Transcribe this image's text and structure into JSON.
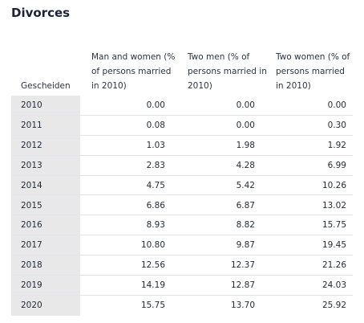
{
  "title": "Divorces",
  "columns": [
    "Gescheiden",
    "Man and women (% of persons married in 2010)",
    "Two men (% of persons married in 2010)",
    "Two women (% of persons married in 2010)"
  ],
  "rows": [
    {
      "year": "2010",
      "man_women": "0.00",
      "two_men": "0.00",
      "two_women": "0.00"
    },
    {
      "year": "2011",
      "man_women": "0.08",
      "two_men": "0.00",
      "two_women": "0.30"
    },
    {
      "year": "2012",
      "man_women": "1.03",
      "two_men": "1.98",
      "two_women": "1.92"
    },
    {
      "year": "2013",
      "man_women": "2.83",
      "two_men": "4.28",
      "two_women": "6.99"
    },
    {
      "year": "2014",
      "man_women": "4.75",
      "two_men": "5.42",
      "two_women": "10.26"
    },
    {
      "year": "2015",
      "man_women": "6.86",
      "two_men": "6.87",
      "two_women": "13.02"
    },
    {
      "year": "2016",
      "man_women": "8.93",
      "two_men": "8.82",
      "two_women": "15.75"
    },
    {
      "year": "2017",
      "man_women": "10.80",
      "two_men": "9.87",
      "two_women": "19.45"
    },
    {
      "year": "2018",
      "man_women": "12.56",
      "two_men": "12.37",
      "two_women": "21.26"
    },
    {
      "year": "2019",
      "man_women": "14.19",
      "two_men": "12.87",
      "two_women": "24.03"
    },
    {
      "year": "2020",
      "man_women": "15.75",
      "two_men": "13.70",
      "two_women": "25.92"
    }
  ]
}
